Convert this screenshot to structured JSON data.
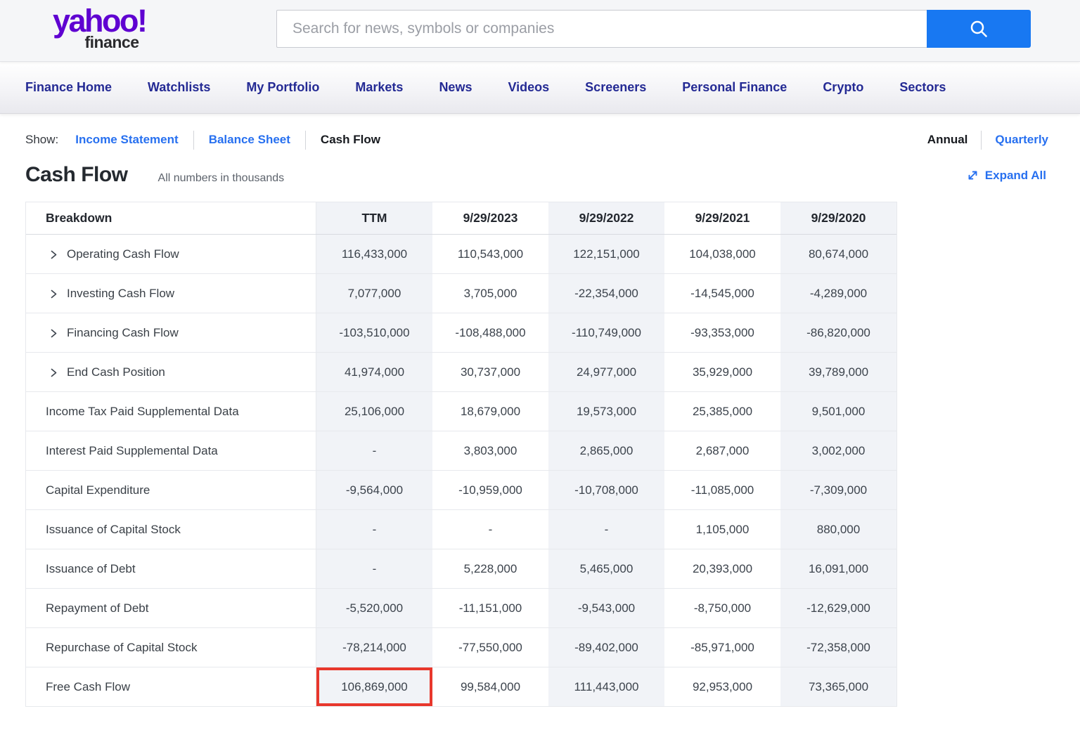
{
  "brand": {
    "logo_main": "yahoo!",
    "logo_sub": "finance"
  },
  "search": {
    "placeholder": "Search for news, symbols or companies"
  },
  "nav": {
    "items": [
      "Finance Home",
      "Watchlists",
      "My Portfolio",
      "Markets",
      "News",
      "Videos",
      "Screeners",
      "Personal Finance",
      "Crypto",
      "Sectors"
    ]
  },
  "statement_tabs": {
    "label": "Show:",
    "tabs": [
      {
        "label": "Income Statement",
        "active": false
      },
      {
        "label": "Balance Sheet",
        "active": false
      },
      {
        "label": "Cash Flow",
        "active": true
      }
    ]
  },
  "period_toggle": {
    "options": [
      {
        "label": "Annual",
        "active": true
      },
      {
        "label": "Quarterly",
        "active": false
      }
    ]
  },
  "page": {
    "title": "Cash Flow",
    "subtitle": "All numbers in thousands",
    "expand_all_label": "Expand All"
  },
  "table": {
    "columns": [
      "Breakdown",
      "TTM",
      "9/29/2023",
      "9/29/2022",
      "9/29/2021",
      "9/29/2020"
    ],
    "rows": [
      {
        "label": "Operating Cash Flow",
        "expandable": true,
        "values": [
          "116,433,000",
          "110,543,000",
          "122,151,000",
          "104,038,000",
          "80,674,000"
        ]
      },
      {
        "label": "Investing Cash Flow",
        "expandable": true,
        "values": [
          "7,077,000",
          "3,705,000",
          "-22,354,000",
          "-14,545,000",
          "-4,289,000"
        ]
      },
      {
        "label": "Financing Cash Flow",
        "expandable": true,
        "values": [
          "-103,510,000",
          "-108,488,000",
          "-110,749,000",
          "-93,353,000",
          "-86,820,000"
        ]
      },
      {
        "label": "End Cash Position",
        "expandable": true,
        "values": [
          "41,974,000",
          "30,737,000",
          "24,977,000",
          "35,929,000",
          "39,789,000"
        ]
      },
      {
        "label": "Income Tax Paid Supplemental Data",
        "expandable": false,
        "values": [
          "25,106,000",
          "18,679,000",
          "19,573,000",
          "25,385,000",
          "9,501,000"
        ]
      },
      {
        "label": "Interest Paid Supplemental Data",
        "expandable": false,
        "values": [
          "-",
          "3,803,000",
          "2,865,000",
          "2,687,000",
          "3,002,000"
        ]
      },
      {
        "label": "Capital Expenditure",
        "expandable": false,
        "values": [
          "-9,564,000",
          "-10,959,000",
          "-10,708,000",
          "-11,085,000",
          "-7,309,000"
        ]
      },
      {
        "label": "Issuance of Capital Stock",
        "expandable": false,
        "values": [
          "-",
          "-",
          "-",
          "1,105,000",
          "880,000"
        ]
      },
      {
        "label": "Issuance of Debt",
        "expandable": false,
        "values": [
          "-",
          "5,228,000",
          "5,465,000",
          "20,393,000",
          "16,091,000"
        ]
      },
      {
        "label": "Repayment of Debt",
        "expandable": false,
        "values": [
          "-5,520,000",
          "-11,151,000",
          "-9,543,000",
          "-8,750,000",
          "-12,629,000"
        ]
      },
      {
        "label": "Repurchase of Capital Stock",
        "expandable": false,
        "values": [
          "-78,214,000",
          "-77,550,000",
          "-89,402,000",
          "-85,971,000",
          "-72,358,000"
        ]
      },
      {
        "label": "Free Cash Flow",
        "expandable": false,
        "values": [
          "106,869,000",
          "99,584,000",
          "111,443,000",
          "92,953,000",
          "73,365,000"
        ],
        "highlight_col": 0
      }
    ]
  },
  "colors": {
    "logo_purple": "#5f01d1",
    "nav_navy": "#242a94",
    "link_blue": "#2770f0",
    "search_button_blue": "#1878f2",
    "highlight_red": "#e8372c",
    "alt_column_bg": "#f1f3f7",
    "text_dark": "#23272e",
    "text_body": "#3c434c"
  }
}
